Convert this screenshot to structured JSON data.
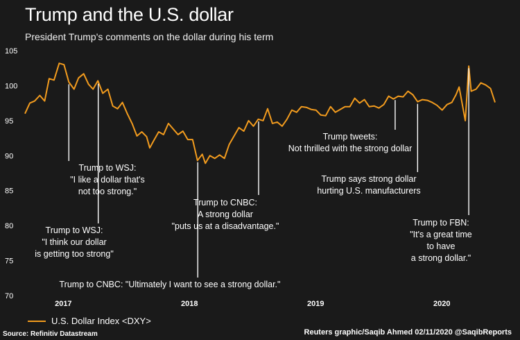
{
  "title": "Trump and the U.S. dollar",
  "subtitle": "President Trump's comments on the dollar during his term",
  "legend_label": "U.S. Dollar Index <DXY>",
  "source": "Source: Refinitiv Datastream",
  "credit": "Reuters graphic/Saqib Ahmed 02/11/2020 @SaqibReports",
  "colors": {
    "background": "#1a1a1a",
    "line": "#f39c1e",
    "text": "#ffffff",
    "leader": "#ffffff"
  },
  "chart_data": {
    "type": "line",
    "title": "Trump and the U.S. dollar",
    "subtitle": "President Trump's comments on the dollar during his term",
    "ylim": [
      70,
      105
    ],
    "yticks": [
      70,
      75,
      80,
      85,
      90,
      95,
      100,
      105
    ],
    "xlim": [
      "2016-09-10",
      "2020-06-05"
    ],
    "xticks": [
      {
        "label": "2017",
        "date": "2017-01-01"
      },
      {
        "label": "2018",
        "date": "2018-01-01"
      },
      {
        "label": "2019",
        "date": "2019-01-01"
      },
      {
        "label": "2020",
        "date": "2020-01-01"
      }
    ],
    "grid": false,
    "legend_position": "bottom-left",
    "series": [
      {
        "name": "U.S. Dollar Index <DXY>",
        "points": [
          [
            "2016-09-12",
            96.0
          ],
          [
            "2016-09-26",
            97.5
          ],
          [
            "2016-10-10",
            97.8
          ],
          [
            "2016-10-25",
            98.6
          ],
          [
            "2016-11-08",
            97.8
          ],
          [
            "2016-11-21",
            101.0
          ],
          [
            "2016-12-05",
            100.8
          ],
          [
            "2016-12-20",
            103.2
          ],
          [
            "2017-01-03",
            103.0
          ],
          [
            "2017-01-17",
            100.5
          ],
          [
            "2017-02-01",
            99.5
          ],
          [
            "2017-02-14",
            101.1
          ],
          [
            "2017-03-01",
            101.7
          ],
          [
            "2017-03-15",
            100.2
          ],
          [
            "2017-03-28",
            99.5
          ],
          [
            "2017-04-11",
            100.7
          ],
          [
            "2017-04-25",
            98.9
          ],
          [
            "2017-05-10",
            99.5
          ],
          [
            "2017-05-24",
            97.1
          ],
          [
            "2017-06-07",
            96.7
          ],
          [
            "2017-06-21",
            97.6
          ],
          [
            "2017-07-05",
            96.0
          ],
          [
            "2017-07-19",
            94.6
          ],
          [
            "2017-08-02",
            92.8
          ],
          [
            "2017-08-16",
            93.4
          ],
          [
            "2017-08-30",
            92.7
          ],
          [
            "2017-09-08",
            91.1
          ],
          [
            "2017-09-20",
            92.2
          ],
          [
            "2017-10-04",
            93.4
          ],
          [
            "2017-10-18",
            93.0
          ],
          [
            "2017-11-01",
            94.6
          ],
          [
            "2017-11-15",
            93.8
          ],
          [
            "2017-11-29",
            93.0
          ],
          [
            "2017-12-13",
            93.5
          ],
          [
            "2017-12-27",
            92.3
          ],
          [
            "2018-01-10",
            92.3
          ],
          [
            "2018-01-24",
            89.3
          ],
          [
            "2018-02-07",
            90.2
          ],
          [
            "2018-02-16",
            88.9
          ],
          [
            "2018-03-01",
            90.0
          ],
          [
            "2018-03-15",
            89.6
          ],
          [
            "2018-03-29",
            90.1
          ],
          [
            "2018-04-12",
            89.6
          ],
          [
            "2018-04-26",
            91.6
          ],
          [
            "2018-05-10",
            92.8
          ],
          [
            "2018-05-24",
            94.0
          ],
          [
            "2018-06-07",
            93.5
          ],
          [
            "2018-06-21",
            95.0
          ],
          [
            "2018-07-05",
            94.2
          ],
          [
            "2018-07-19",
            95.2
          ],
          [
            "2018-08-02",
            95.0
          ],
          [
            "2018-08-15",
            96.7
          ],
          [
            "2018-08-29",
            94.6
          ],
          [
            "2018-09-12",
            94.8
          ],
          [
            "2018-09-26",
            94.2
          ],
          [
            "2018-10-10",
            95.2
          ],
          [
            "2018-10-24",
            96.5
          ],
          [
            "2018-11-07",
            96.2
          ],
          [
            "2018-11-21",
            97.0
          ],
          [
            "2018-12-05",
            96.9
          ],
          [
            "2018-12-19",
            96.6
          ],
          [
            "2019-01-02",
            96.5
          ],
          [
            "2019-01-16",
            95.8
          ],
          [
            "2019-01-30",
            95.7
          ],
          [
            "2019-02-13",
            97.0
          ],
          [
            "2019-02-27",
            96.2
          ],
          [
            "2019-03-13",
            96.6
          ],
          [
            "2019-03-27",
            97.0
          ],
          [
            "2019-04-10",
            97.0
          ],
          [
            "2019-04-24",
            98.2
          ],
          [
            "2019-05-08",
            97.5
          ],
          [
            "2019-05-22",
            98.0
          ],
          [
            "2019-06-05",
            97.0
          ],
          [
            "2019-06-19",
            97.1
          ],
          [
            "2019-07-03",
            96.8
          ],
          [
            "2019-07-17",
            97.3
          ],
          [
            "2019-07-31",
            98.5
          ],
          [
            "2019-08-14",
            98.1
          ],
          [
            "2019-08-28",
            98.5
          ],
          [
            "2019-09-11",
            98.4
          ],
          [
            "2019-09-25",
            99.2
          ],
          [
            "2019-10-09",
            98.7
          ],
          [
            "2019-10-23",
            97.7
          ],
          [
            "2019-11-06",
            98.0
          ],
          [
            "2019-11-20",
            97.9
          ],
          [
            "2019-12-04",
            97.6
          ],
          [
            "2019-12-18",
            97.2
          ],
          [
            "2020-01-02",
            96.5
          ],
          [
            "2020-01-16",
            97.3
          ],
          [
            "2020-01-30",
            97.6
          ],
          [
            "2020-02-11",
            98.7
          ],
          [
            "2020-02-20",
            99.8
          ],
          [
            "2020-03-09",
            95.0
          ],
          [
            "2020-03-19",
            102.8
          ],
          [
            "2020-03-26",
            99.2
          ],
          [
            "2020-04-09",
            99.5
          ],
          [
            "2020-04-23",
            100.4
          ],
          [
            "2020-05-07",
            100.1
          ],
          [
            "2020-05-21",
            99.6
          ],
          [
            "2020-06-03",
            97.6
          ]
        ]
      }
    ],
    "annotations": [
      {
        "date": "2017-01-17",
        "lines": [
          "Trump to WSJ:",
          "\"I like a dollar that's",
          "not too strong.\""
        ]
      },
      {
        "date": "2017-04-12",
        "lines": [
          "Trump to WSJ:",
          "\"I think our dollar",
          "is getting too strong\""
        ]
      },
      {
        "date": "2018-01-25",
        "lines": [
          "Trump to CNBC: \"Ultimately I want to see a strong dollar.\""
        ]
      },
      {
        "date": "2018-07-20",
        "lines": [
          "Trump to CNBC:",
          "A strong dollar",
          "\"puts us at a disadvantage.\""
        ]
      },
      {
        "date": "2019-08-19",
        "lines": [
          "Trump tweets:",
          "Not thrilled with the strong dollar"
        ]
      },
      {
        "date": "2019-10-23",
        "lines": [
          "Trump says strong dollar",
          "hurting U.S. manufacturers"
        ]
      },
      {
        "date": "2020-03-19",
        "lines": [
          "Trump to FBN:",
          "\"It's a great time",
          "to have",
          "a strong dollar.\""
        ]
      }
    ]
  }
}
